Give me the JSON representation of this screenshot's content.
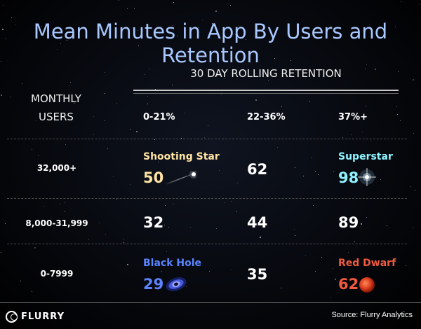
{
  "title": "Mean Minutes in App By Users and Retention",
  "retention_header": "30 DAY ROLLING RETENTION",
  "monthly_users_label": {
    "line1": "MONTHLY",
    "line2": "USERS"
  },
  "columns": [
    "0-21%",
    "22-36%",
    "37%+"
  ],
  "rows": [
    {
      "label": "32,000+",
      "cells": [
        {
          "value": "50",
          "tag": "Shooting Star",
          "tag_color": "#ffe4a3",
          "value_color": "#ffe4a3",
          "icon": "shooting-star-icon"
        },
        {
          "value": "62"
        },
        {
          "value": "98",
          "tag": "Superstar",
          "tag_color": "#8ff3ff",
          "value_color": "#8ff3ff",
          "icon": "superstar-icon"
        }
      ]
    },
    {
      "label": "8,000-31,999",
      "cells": [
        {
          "value": "32"
        },
        {
          "value": "44"
        },
        {
          "value": "89"
        }
      ]
    },
    {
      "label": "0-7999",
      "cells": [
        {
          "value": "29",
          "tag": "Black Hole",
          "tag_color": "#5b83ff",
          "value_color": "#5b83ff",
          "icon": "black-hole-icon"
        },
        {
          "value": "35"
        },
        {
          "value": "62",
          "tag": "Red Dwarf",
          "tag_color": "#f05a40",
          "value_color": "#f05a40",
          "icon": "red-dwarf-icon"
        }
      ]
    }
  ],
  "footer": {
    "logo_text": "FLURRY",
    "source": "Source: Flurry Analytics"
  }
}
